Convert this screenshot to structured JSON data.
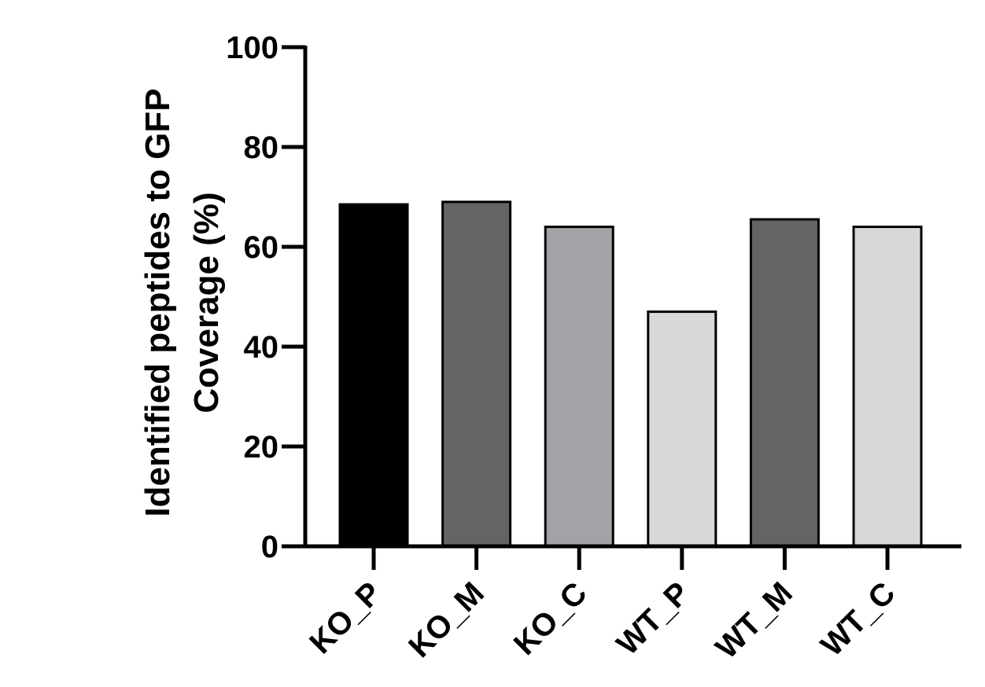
{
  "chart_data": {
    "type": "bar",
    "title": "",
    "xlabel": "",
    "ylabel_lines": [
      "Identified peptides to GFP",
      "Coverage (%)"
    ],
    "categories": [
      "KO_P",
      "KO_M",
      "KO_C",
      "WT_P",
      "WT_M",
      "WT_C"
    ],
    "values": [
      68.5,
      69,
      64,
      47,
      65.5,
      64
    ],
    "bar_colors": [
      "#000000",
      "#646464",
      "#a3a3a7",
      "#d8d8d8",
      "#646464",
      "#d8d8d8"
    ],
    "ylim": [
      0,
      100
    ],
    "yticks": [
      0,
      20,
      40,
      60,
      80,
      100
    ],
    "grid": false,
    "legend": "none"
  }
}
